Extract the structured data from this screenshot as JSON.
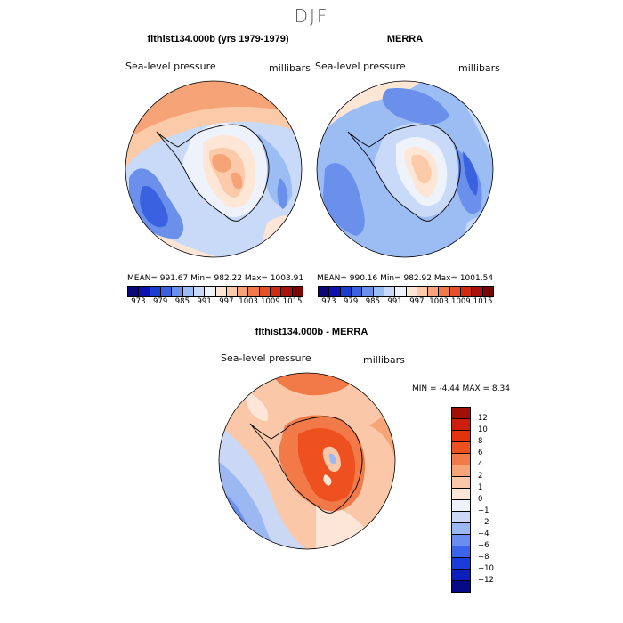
{
  "figure": {
    "season": "DJF"
  },
  "panel_model": {
    "title": "flthist134.000b (yrs 1979-1979)",
    "variable": "Sea-level pressure",
    "units": "millibars",
    "stats": "MEAN= 991.67   Min= 982.22   Max= 1003.91"
  },
  "panel_obs": {
    "title": "MERRA",
    "variable": "Sea-level pressure",
    "units": "millibars",
    "stats": "MEAN= 990.16   Min= 982.92   Max= 1001.54"
  },
  "panel_diff": {
    "title": "flthist134.000b - MERRA",
    "variable": "Sea-level pressure",
    "units": "millibars",
    "minmax": "MIN =   -4.44 MAX =    8.34"
  },
  "colorbar_abs": {
    "ticks": [
      "973",
      "979",
      "985",
      "991",
      "997",
      "1003",
      "1009",
      "1015"
    ],
    "colors": [
      "#08087a",
      "#1010b0",
      "#1a3fd0",
      "#3a62e0",
      "#6a90ec",
      "#9cbcf4",
      "#c8daf8",
      "#eef2fb",
      "#fde6d6",
      "#fbcaa8",
      "#f6a378",
      "#f07a4c",
      "#e5502a",
      "#d12a10",
      "#a8120a",
      "#7a0606"
    ]
  },
  "colorbar_diff": {
    "ticks": [
      "12",
      "10",
      "8",
      "6",
      "4",
      "2",
      "1",
      "0",
      "−1",
      "−2",
      "−4",
      "−6",
      "−8",
      "−10",
      "−12"
    ],
    "colors": [
      "#a01008",
      "#cc1e0a",
      "#e4320f",
      "#ee5020",
      "#f27a48",
      "#f7a478",
      "#fac8a8",
      "#fde6d8",
      "#eef0fa",
      "#cad8f6",
      "#9cb8f2",
      "#6a8ef0",
      "#3c64ea",
      "#1a3cd8",
      "#0c1ebc",
      "#060a86"
    ]
  },
  "chart_data": {
    "type": "heatmap",
    "projection": "south polar stereographic",
    "panels": [
      {
        "name": "flthist134.000b (yrs 1979-1979)",
        "mean": 991.67,
        "min": 982.22,
        "max": 1003.91
      },
      {
        "name": "MERRA",
        "mean": 990.16,
        "min": 982.92,
        "max": 1001.54
      },
      {
        "name": "flthist134.000b - MERRA",
        "min": -4.44,
        "max": 8.34
      }
    ],
    "abs_contour_levels": [
      973,
      979,
      985,
      991,
      997,
      1003,
      1009,
      1015
    ],
    "diff_contour_levels": [
      -12,
      -10,
      -8,
      -6,
      -4,
      -2,
      -1,
      0,
      1,
      2,
      4,
      6,
      8,
      10,
      12
    ]
  }
}
